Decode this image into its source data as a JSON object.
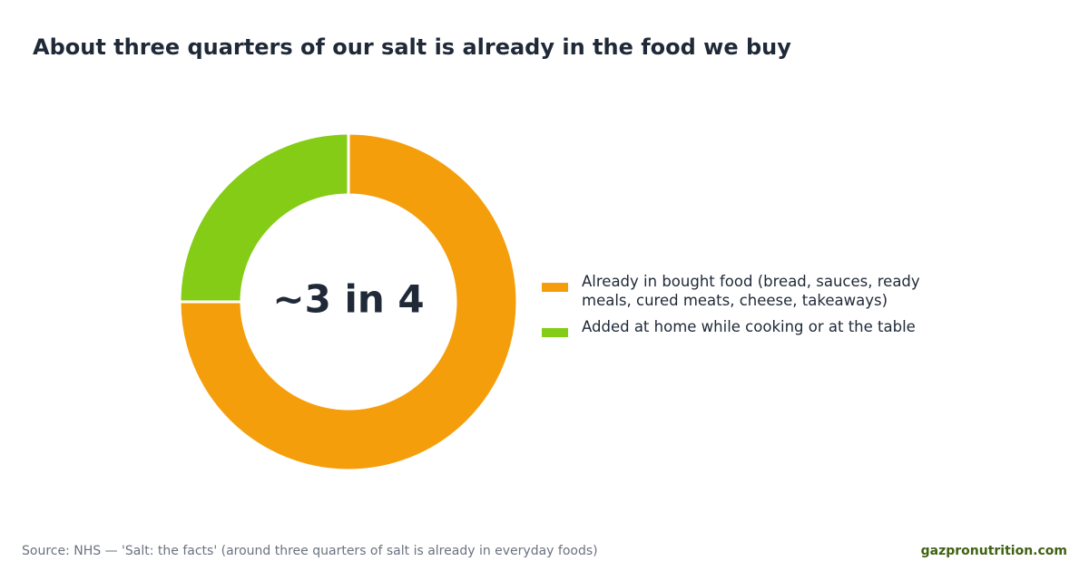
{
  "chart_data": {
    "type": "donut",
    "title": "About three quarters of our salt is already in the food we buy",
    "center_label": "~3 in 4",
    "categories": [
      "Already in bought food (bread, sauces, ready meals, cured meats, cheese, takeaways)",
      "Added at home while cooking or at the table"
    ],
    "values": [
      75,
      25
    ],
    "colors": [
      "#f59e0b",
      "#84cc16"
    ],
    "source": "Source: NHS — 'Salt: the facts' (around three quarters of salt is already in everyday foods)",
    "brand": "gazpronutrition.com"
  }
}
